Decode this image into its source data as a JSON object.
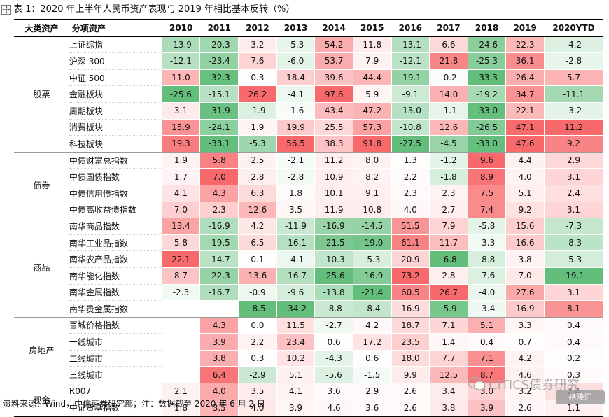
{
  "title": "表 1：2020 年上半年人民币资产表现与 2019 年相比基本反转（%）",
  "headers": [
    "大类资产",
    "分项资产",
    "2010",
    "2011",
    "2012",
    "2013",
    "2014",
    "2015",
    "2016",
    "2017",
    "2018",
    "2019",
    "2020YTD"
  ],
  "groups": [
    {
      "name": "股票",
      "rows": [
        {
          "name": "上证综指",
          "values": [
            -13.9,
            -20.3,
            3.2,
            -5.3,
            54.2,
            11.8,
            -13.1,
            6.6,
            -24.6,
            22.3,
            -4.2
          ]
        },
        {
          "name": "沪深 300",
          "values": [
            -12.1,
            -23.4,
            7.6,
            -6.0,
            53.7,
            7.9,
            -12.1,
            21.8,
            -25.3,
            36.1,
            -2.8
          ]
        },
        {
          "name": "中证 500",
          "values": [
            11.0,
            -32.3,
            0.3,
            18.4,
            39.6,
            44.4,
            -19.1,
            -0.2,
            -33.3,
            26.4,
            5.7
          ]
        },
        {
          "name": "金融板块",
          "values": [
            -25.6,
            -15.1,
            26.2,
            -4.1,
            97.6,
            5.9,
            -9.1,
            14.0,
            -19.2,
            34.7,
            -11.1
          ]
        },
        {
          "name": "周期板块",
          "values": [
            3.1,
            -31.9,
            -1.9,
            -1.6,
            43.4,
            47.2,
            -13.0,
            -1.1,
            -33.0,
            22.1,
            -3.2
          ]
        },
        {
          "name": "消费板块",
          "values": [
            15.9,
            -24.1,
            1.9,
            19.9,
            25.5,
            57.3,
            -10.8,
            12.6,
            -26.5,
            47.1,
            11.2
          ]
        },
        {
          "name": "科技板块",
          "values": [
            19.3,
            -33.1,
            -5.3,
            56.5,
            38.3,
            91.8,
            -27.5,
            -4.5,
            -33.0,
            47.6,
            9.2
          ]
        }
      ]
    },
    {
      "name": "债券",
      "rows": [
        {
          "name": "中债财富总指数",
          "values": [
            1.9,
            5.8,
            2.5,
            -2.1,
            11.2,
            8.0,
            1.3,
            -1.2,
            9.6,
            4.4,
            2.9
          ]
        },
        {
          "name": "中债国债指数",
          "values": [
            1.7,
            7.0,
            2.8,
            -2.8,
            10.9,
            8.2,
            2.2,
            -1.8,
            8.9,
            4.0,
            3.1
          ]
        },
        {
          "name": "中债信用债指数",
          "values": [
            4.1,
            4.3,
            6.3,
            1.8,
            10.1,
            9.1,
            2.3,
            2.3,
            7.5,
            5.1,
            2.4
          ]
        },
        {
          "name": "中债高收益债指数",
          "values": [
            7.0,
            2.3,
            12.6,
            3.5,
            11.9,
            10.8,
            4.0,
            2.7,
            7.4,
            9.2,
            3.1
          ]
        }
      ]
    },
    {
      "name": "商品",
      "rows": [
        {
          "name": "南华商品指数",
          "values": [
            13.4,
            -16.9,
            4.2,
            -11.9,
            -16.9,
            -14.5,
            51.5,
            7.9,
            -5.8,
            15.6,
            -7.3
          ]
        },
        {
          "name": "南华工业品指数",
          "values": [
            5.8,
            -19.5,
            6.5,
            -16.1,
            -21.5,
            -19.0,
            61.1,
            11.7,
            -3.3,
            16.6,
            -8.3
          ]
        },
        {
          "name": "南华农产品指数",
          "values": [
            22.1,
            -14.7,
            0.1,
            -4.1,
            -10.3,
            -5.3,
            20.9,
            -6.8,
            -8.8,
            3.8,
            -5.3
          ]
        },
        {
          "name": "南华能化指数",
          "values": [
            8.7,
            -22.3,
            13.6,
            -16.7,
            -25.6,
            -16.9,
            73.2,
            2.8,
            -7.6,
            7.0,
            -19.1
          ]
        },
        {
          "name": "南华金属指数",
          "values": [
            -2.3,
            -16.7,
            -0.9,
            -9.6,
            -13.8,
            -21.4,
            60.5,
            26.7,
            -4.0,
            27.6,
            3.1
          ]
        },
        {
          "name": "南华贵金属指数",
          "values": [
            null,
            null,
            -8.5,
            -34.2,
            -8.8,
            -8.4,
            16.9,
            -5.9,
            -3.4,
            16.9,
            8.1
          ]
        }
      ]
    },
    {
      "name": "房地产",
      "rows": [
        {
          "name": "百城价格指数",
          "values": [
            null,
            4.3,
            0.0,
            11.5,
            -2.7,
            4.2,
            18.7,
            7.1,
            5.1,
            3.3,
            0.4
          ]
        },
        {
          "name": "一线城市",
          "values": [
            null,
            3.9,
            2.2,
            23.4,
            0.6,
            17.2,
            23.5,
            1.4,
            0.4,
            0.7,
            0.4
          ]
        },
        {
          "name": "二线城市",
          "values": [
            null,
            3.8,
            0.3,
            10.2,
            -4.3,
            0.6,
            18.0,
            7.7,
            7.1,
            4.2,
            0.2
          ]
        },
        {
          "name": "三线城市",
          "values": [
            null,
            6.4,
            -2.9,
            5.1,
            -5.6,
            -1.5,
            9.9,
            12.5,
            8.7,
            4.6,
            0.3
          ]
        }
      ]
    },
    {
      "name": "现金",
      "rows": [
        {
          "name": "R007",
          "values": [
            2.1,
            4.0,
            3.5,
            4.1,
            3.6,
            2.9,
            2.6,
            3.4,
            3.0,
            3.2,
            2.4
          ]
        },
        {
          "name": "中证货基指数",
          "values": [
            1.8,
            3.5,
            4.0,
            3.9,
            4.6,
            3.6,
            2.6,
            3.8,
            3.9,
            2.6,
            1.1
          ]
        }
      ]
    }
  ],
  "footer": "资料来源：Wind，中信证券研究部；注：数据截至 2020 年 6 月 2 日",
  "watermark": "CITICS债券研究",
  "badge": "格隆汇",
  "colors": {
    "positive": "#f8696b",
    "negative": "#63be7b",
    "neutral": "#ffffff"
  }
}
